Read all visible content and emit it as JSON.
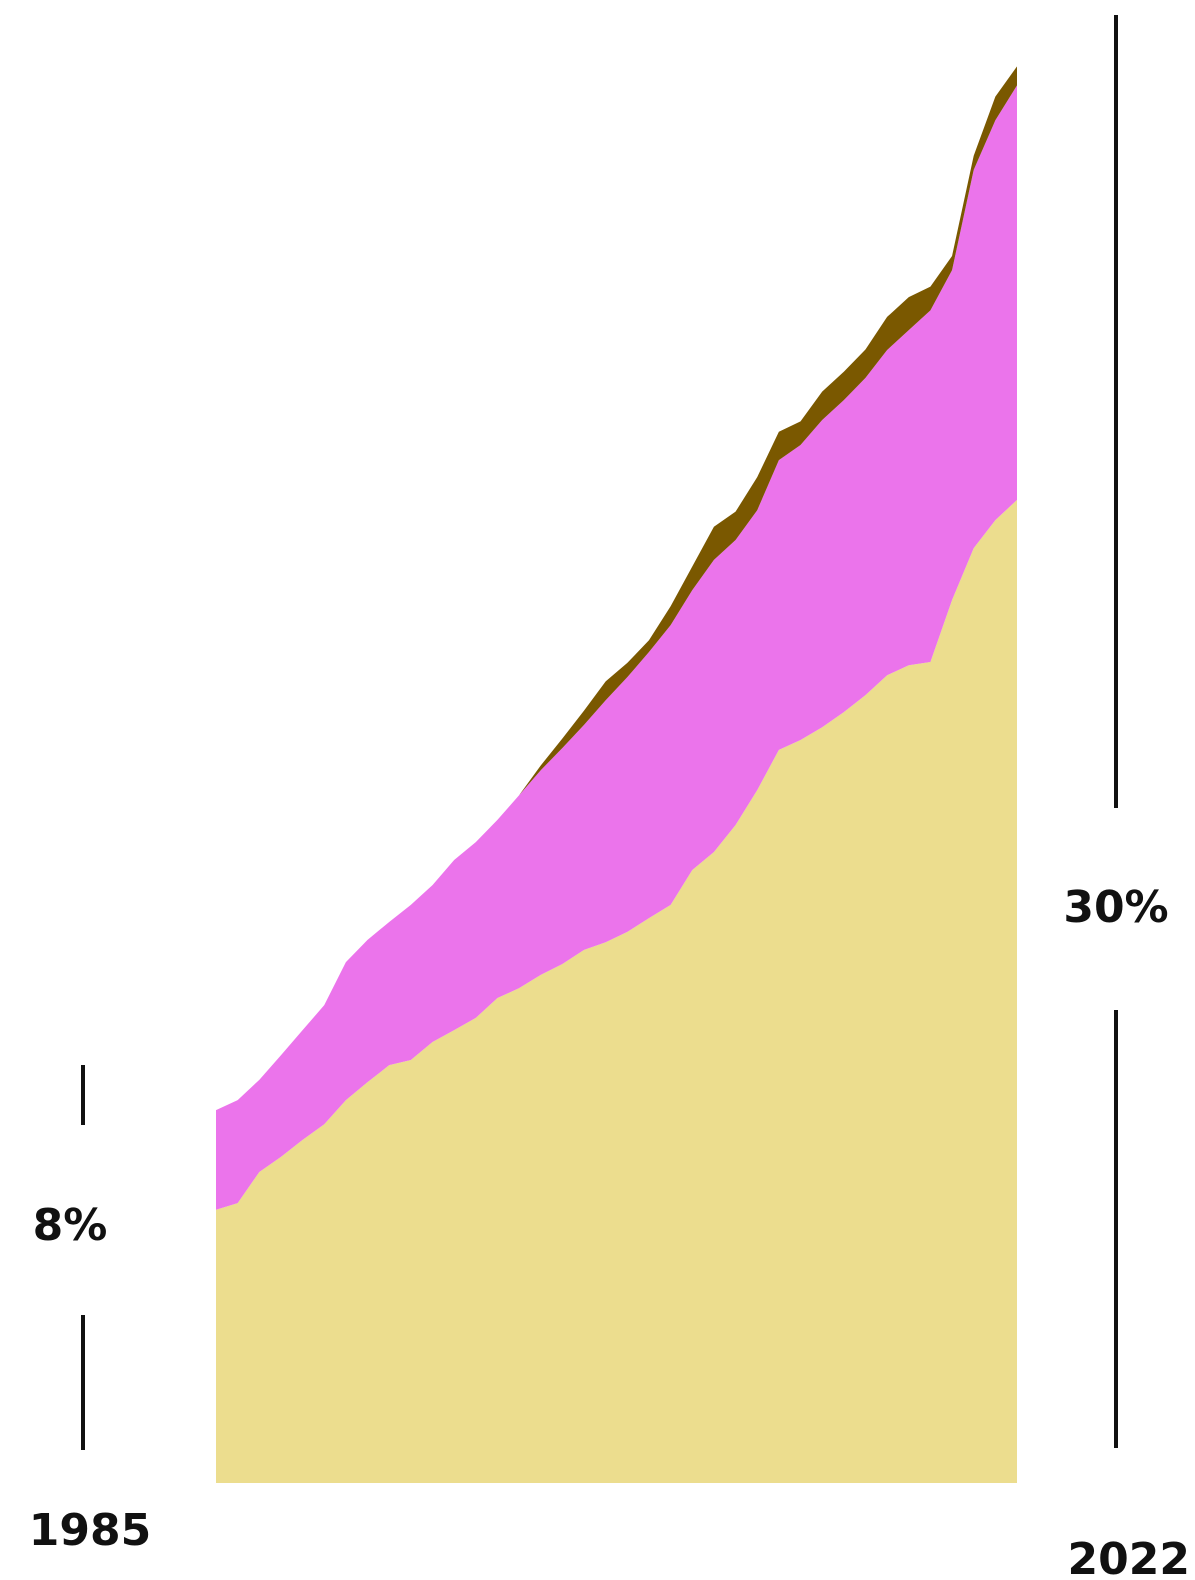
{
  "chart_data": {
    "type": "stacked_area",
    "start_label": "8%",
    "end_label": "30%",
    "x": [
      1985,
      1986,
      1987,
      1988,
      1989,
      1990,
      1991,
      1992,
      1993,
      1994,
      1995,
      1996,
      1997,
      1998,
      1999,
      2000,
      2001,
      2002,
      2003,
      2004,
      2005,
      2006,
      2007,
      2008,
      2009,
      2010,
      2011,
      2012,
      2013,
      2014,
      2015,
      2016,
      2017,
      2018,
      2019,
      2020,
      2021,
      2022
    ],
    "xlim": [
      1985,
      2022
    ],
    "xticks": [
      1985,
      2022
    ],
    "ylim": [
      0,
      30
    ],
    "series": [
      {
        "color": "#ecdd8e",
        "values": [
          5.78,
          5.92,
          6.58,
          6.9,
          7.26,
          7.59,
          8.1,
          8.48,
          8.84,
          8.95,
          9.33,
          9.58,
          9.84,
          10.26,
          10.47,
          10.75,
          10.98,
          11.28,
          11.44,
          11.66,
          11.95,
          12.23,
          12.97,
          13.35,
          13.92,
          14.66,
          15.51,
          15.72,
          15.99,
          16.31,
          16.67,
          17.09,
          17.3,
          17.37,
          18.68,
          19.78,
          20.37,
          20.8
        ]
      },
      {
        "color": "#eb74eb",
        "values": [
          2.11,
          2.18,
          1.95,
          2.15,
          2.32,
          2.52,
          2.92,
          3.01,
          3.03,
          3.28,
          3.32,
          3.6,
          3.72,
          3.77,
          4.08,
          4.33,
          4.57,
          4.76,
          5.12,
          5.39,
          5.63,
          5.92,
          5.92,
          6.18,
          6.03,
          5.92,
          6.13,
          6.24,
          6.5,
          6.6,
          6.71,
          6.88,
          7.09,
          7.44,
          6.98,
          8,
          8.46,
          8.77
        ]
      },
      {
        "color": "#7a5800",
        "values": [
          0,
          0,
          0,
          0,
          0,
          0,
          0,
          0,
          0,
          0,
          0,
          0,
          0,
          0,
          0,
          0.1,
          0.2,
          0.3,
          0.4,
          0.3,
          0.25,
          0.4,
          0.5,
          0.7,
          0.6,
          0.7,
          0.6,
          0.5,
          0.6,
          0.6,
          0.6,
          0.7,
          0.7,
          0.5,
          0.3,
          0.3,
          0.5,
          0.4
        ]
      }
    ]
  }
}
